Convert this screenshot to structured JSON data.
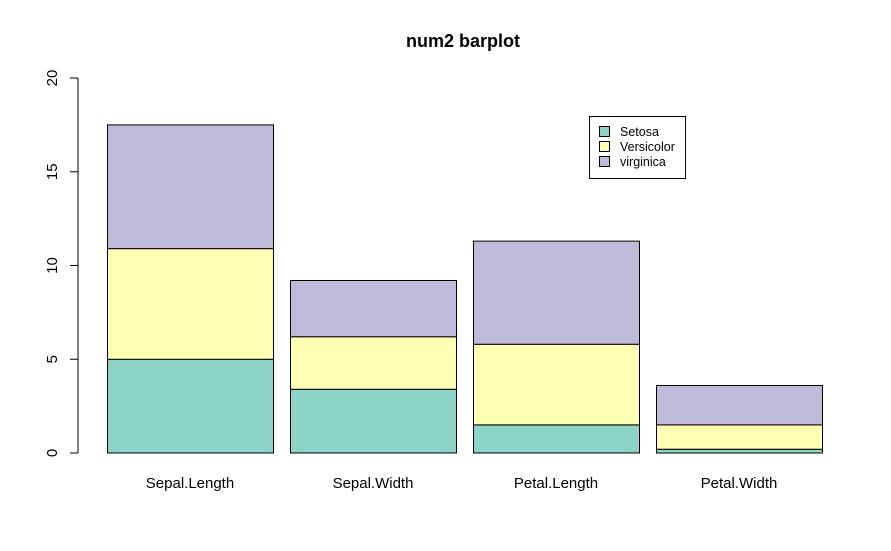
{
  "chart_data": {
    "type": "bar",
    "stacked": true,
    "title": "num2 barplot",
    "xlabel": "",
    "ylabel": "",
    "categories": [
      "Sepal.Length",
      "Sepal.Width",
      "Petal.Length",
      "Petal.Width"
    ],
    "series": [
      {
        "name": "Setosa",
        "color": "#8DD3C7",
        "values": [
          5.0,
          3.4,
          1.5,
          0.2
        ]
      },
      {
        "name": "Versicolor",
        "color": "#FFFFB3",
        "values": [
          5.9,
          2.8,
          4.3,
          1.3
        ]
      },
      {
        "name": "virginica",
        "color": "#BEBADA",
        "values": [
          6.6,
          3.0,
          5.5,
          2.1
        ]
      }
    ],
    "ylim": [
      0,
      20
    ],
    "yticks": [
      0,
      5,
      10,
      15,
      20
    ],
    "grid": false,
    "legend_position": "top-right"
  }
}
